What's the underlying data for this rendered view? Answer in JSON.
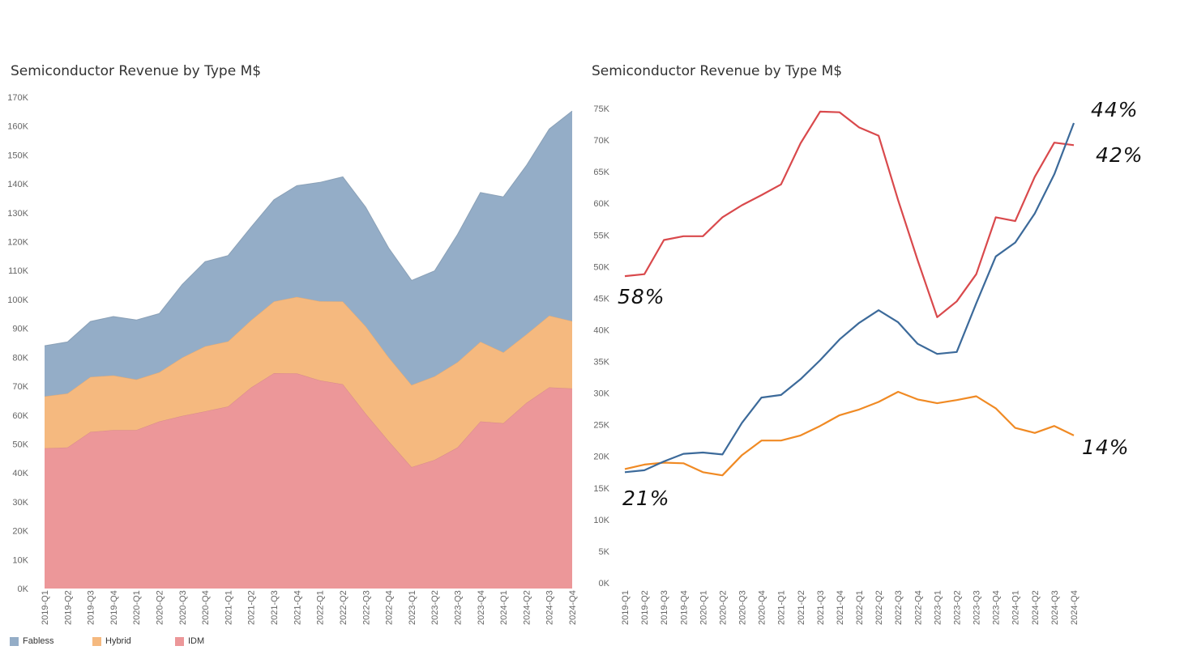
{
  "chart_data": [
    {
      "type": "area",
      "stacked": true,
      "title": "Semiconductor Revenue by Type M$",
      "xlabel": "",
      "ylabel": "",
      "ylim": [
        0,
        170000
      ],
      "yticks": [
        "0K",
        "10K",
        "20K",
        "30K",
        "40K",
        "50K",
        "60K",
        "70K",
        "80K",
        "90K",
        "100K",
        "110K",
        "120K",
        "130K",
        "140K",
        "150K",
        "160K",
        "170K"
      ],
      "categories": [
        "2019-Q1",
        "2019-Q2",
        "2019-Q3",
        "2019-Q4",
        "2020-Q1",
        "2020-Q2",
        "2020-Q3",
        "2020-Q4",
        "2021-Q1",
        "2021-Q2",
        "2021-Q3",
        "2021-Q4",
        "2022-Q1",
        "2022-Q2",
        "2022-Q3",
        "2022-Q4",
        "2023-Q1",
        "2023-Q2",
        "2023-Q3",
        "2023-Q4",
        "2024-Q1",
        "2024-Q2",
        "2024-Q3",
        "2024-Q4"
      ],
      "series": [
        {
          "name": "IDM",
          "color": "#ec9799",
          "values": [
            48500,
            48800,
            54200,
            54800,
            54800,
            57800,
            59700,
            61300,
            63000,
            69500,
            74500,
            74400,
            72000,
            70700,
            60500,
            51000,
            42000,
            44500,
            48800,
            57800,
            57200,
            64200,
            69600,
            69200
          ]
        },
        {
          "name": "Hybrid",
          "color": "#f5b97f",
          "values": [
            18000,
            18700,
            19000,
            18900,
            17500,
            17000,
            20200,
            22500,
            22500,
            23300,
            24800,
            26500,
            27400,
            28600,
            30200,
            29000,
            28400,
            28900,
            29500,
            27600,
            24500,
            23700,
            24800,
            23300
          ]
        },
        {
          "name": "Fabless",
          "color": "#94adc7",
          "values": [
            17500,
            17800,
            19200,
            20400,
            20600,
            20300,
            25300,
            29300,
            29700,
            32200,
            35200,
            38500,
            41100,
            43100,
            41200,
            37800,
            36200,
            36500,
            44200,
            51600,
            53800,
            58400,
            64600,
            72700
          ]
        }
      ],
      "legend_position": "bottom-left",
      "grid": false
    },
    {
      "type": "line",
      "title": "Semiconductor Revenue by Type M$",
      "xlabel": "",
      "ylabel": "",
      "ylim": [
        0,
        75000
      ],
      "yticks": [
        "0K",
        "5K",
        "10K",
        "15K",
        "20K",
        "25K",
        "30K",
        "35K",
        "40K",
        "45K",
        "50K",
        "55K",
        "60K",
        "65K",
        "70K",
        "75K"
      ],
      "categories": [
        "2019-Q1",
        "2019-Q2",
        "2019-Q3",
        "2019-Q4",
        "2020-Q1",
        "2020-Q2",
        "2020-Q3",
        "2020-Q4",
        "2021-Q1",
        "2021-Q2",
        "2021-Q3",
        "2021-Q4",
        "2022-Q1",
        "2022-Q2",
        "2022-Q3",
        "2022-Q4",
        "2023-Q1",
        "2023-Q2",
        "2023-Q3",
        "2023-Q4",
        "2024-Q1",
        "2024-Q2",
        "2024-Q3",
        "2024-Q4"
      ],
      "series": [
        {
          "color": "#d9494c",
          "values": [
            48500,
            48800,
            54200,
            54800,
            54800,
            57800,
            59700,
            61300,
            63000,
            69500,
            74500,
            74400,
            72000,
            70700,
            60500,
            51000,
            42000,
            44500,
            48800,
            57800,
            57200,
            64200,
            69600,
            69200
          ]
        },
        {
          "color": "#f08a24",
          "values": [
            18000,
            18700,
            19000,
            18900,
            17500,
            17000,
            20200,
            22500,
            22500,
            23300,
            24800,
            26500,
            27400,
            28600,
            30200,
            29000,
            28400,
            28900,
            29500,
            27600,
            24500,
            23700,
            24800,
            23300
          ]
        },
        {
          "color": "#3c6a9a",
          "values": [
            17500,
            17800,
            19200,
            20400,
            20600,
            20300,
            25300,
            29300,
            29700,
            32200,
            35200,
            38500,
            41100,
            43100,
            41200,
            37800,
            36200,
            36500,
            44200,
            51600,
            53800,
            58400,
            64600,
            72700
          ]
        }
      ],
      "annotations": [
        "58%",
        "21%",
        "44%",
        "42%",
        "14%"
      ],
      "grid": false
    }
  ],
  "legend": {
    "items": [
      {
        "label": "Fabless",
        "color": "#94adc7"
      },
      {
        "label": "Hybrid",
        "color": "#f5b97f"
      },
      {
        "label": "IDM",
        "color": "#ec9799"
      }
    ]
  }
}
